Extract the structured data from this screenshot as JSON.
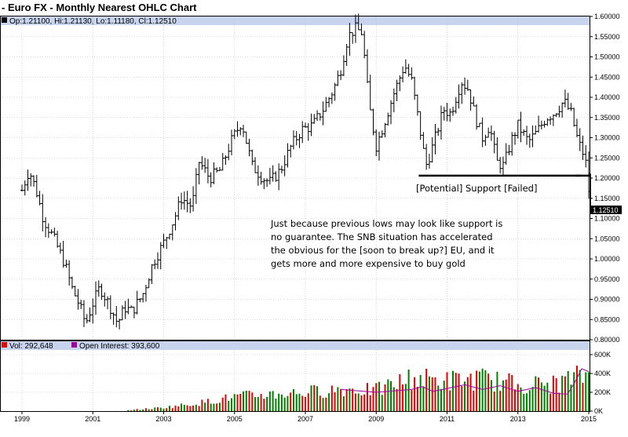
{
  "chart_data": {
    "type": "ohlc",
    "title": "- Euro FX - Monthly Nearest OHLC Chart",
    "ohlc_readout": {
      "label": "Op:1.21100, Hi:1.21130, Lo:1.11180, Cl:1.12510"
    },
    "last_price_badge": "1.12510",
    "price_axis": {
      "ylim": [
        0.8,
        1.6
      ],
      "ticks": [
        "1.60000",
        "1.55000",
        "1.50000",
        "1.45000",
        "1.40000",
        "1.35000",
        "1.30000",
        "1.25000",
        "1.20000",
        "1.15000",
        "1.10000",
        "1.05000",
        "1.00000",
        "0.95000",
        "0.90000",
        "0.85000",
        "0.80000"
      ]
    },
    "x_axis": {
      "range": [
        1998.7,
        2015.2
      ],
      "ticks": [
        "1999",
        "2001",
        "2003",
        "2005",
        "2007",
        "2009",
        "2011",
        "2013",
        "2015"
      ]
    },
    "price_path": [
      [
        1999.0,
        1.17
      ],
      [
        1999.2,
        1.22
      ],
      [
        1999.4,
        1.17
      ],
      [
        1999.6,
        1.1
      ],
      [
        1999.9,
        1.05
      ],
      [
        2000.2,
        0.99
      ],
      [
        2000.4,
        0.93
      ],
      [
        2000.6,
        0.89
      ],
      [
        2000.8,
        0.84
      ],
      [
        2001.0,
        0.89
      ],
      [
        2001.2,
        0.93
      ],
      [
        2001.5,
        0.88
      ],
      [
        2001.7,
        0.84
      ],
      [
        2001.9,
        0.88
      ],
      [
        2002.1,
        0.87
      ],
      [
        2002.4,
        0.91
      ],
      [
        2002.7,
        0.99
      ],
      [
        2003.0,
        1.04
      ],
      [
        2003.3,
        1.1
      ],
      [
        2003.5,
        1.15
      ],
      [
        2003.8,
        1.13
      ],
      [
        2004.0,
        1.24
      ],
      [
        2004.3,
        1.2
      ],
      [
        2004.6,
        1.22
      ],
      [
        2004.9,
        1.29
      ],
      [
        2005.2,
        1.34
      ],
      [
        2005.5,
        1.23
      ],
      [
        2005.8,
        1.2
      ],
      [
        2006.0,
        1.19
      ],
      [
        2006.3,
        1.22
      ],
      [
        2006.6,
        1.28
      ],
      [
        2006.9,
        1.32
      ],
      [
        2007.2,
        1.33
      ],
      [
        2007.5,
        1.37
      ],
      [
        2007.8,
        1.42
      ],
      [
        2008.0,
        1.47
      ],
      [
        2008.2,
        1.55
      ],
      [
        2008.4,
        1.57
      ],
      [
        2008.6,
        1.56
      ],
      [
        2008.8,
        1.38
      ],
      [
        2009.0,
        1.28
      ],
      [
        2009.2,
        1.33
      ],
      [
        2009.5,
        1.41
      ],
      [
        2009.8,
        1.48
      ],
      [
        2010.0,
        1.44
      ],
      [
        2010.2,
        1.34
      ],
      [
        2010.4,
        1.23
      ],
      [
        2010.6,
        1.28
      ],
      [
        2010.9,
        1.37
      ],
      [
        2011.1,
        1.36
      ],
      [
        2011.4,
        1.44
      ],
      [
        2011.6,
        1.42
      ],
      [
        2011.8,
        1.35
      ],
      [
        2012.0,
        1.3
      ],
      [
        2012.2,
        1.33
      ],
      [
        2012.4,
        1.24
      ],
      [
        2012.6,
        1.23
      ],
      [
        2012.8,
        1.29
      ],
      [
        2013.0,
        1.33
      ],
      [
        2013.3,
        1.29
      ],
      [
        2013.5,
        1.31
      ],
      [
        2013.8,
        1.35
      ],
      [
        2014.0,
        1.36
      ],
      [
        2014.3,
        1.39
      ],
      [
        2014.5,
        1.36
      ],
      [
        2014.7,
        1.29
      ],
      [
        2014.9,
        1.25
      ],
      [
        2015.0,
        1.17
      ]
    ],
    "support_line": {
      "y": 1.206,
      "x_start": 2010.2,
      "x_end": 2014.8
    },
    "price_marker": {
      "y": 1.206,
      "x_start": 2015.1,
      "x_end": 2015.5
    },
    "annotations": {
      "support_label": "[Potential] Support [Failed]",
      "note_lines": [
        "Just because previous lows may look like support is",
        "no guarantee.  The SNB situation has accelerated",
        "the obvious for the [soon to break up?] EU, and it",
        "gets more and more expensive to buy gold"
      ]
    },
    "volume_panel": {
      "legend": {
        "volume": "Vol: 292,648",
        "open_interest": "Open Interest: 393,600"
      },
      "ylim": [
        0,
        600000
      ],
      "ticks": [
        "600K",
        "400K",
        "200K",
        "0K"
      ],
      "volume_by_year": [
        [
          2002.0,
          10000
        ],
        [
          2003.0,
          40000
        ],
        [
          2004.0,
          90000
        ],
        [
          2005.0,
          160000
        ],
        [
          2006.0,
          190000
        ],
        [
          2007.0,
          210000
        ],
        [
          2008.0,
          250000
        ],
        [
          2009.0,
          230000
        ],
        [
          2010.0,
          370000
        ],
        [
          2011.0,
          340000
        ],
        [
          2012.0,
          360000
        ],
        [
          2013.0,
          300000
        ],
        [
          2014.0,
          300000
        ],
        [
          2015.0,
          420000
        ]
      ],
      "open_interest_path": [
        [
          2008.0,
          230000
        ],
        [
          2009.0,
          200000
        ],
        [
          2010.0,
          230000
        ],
        [
          2010.3,
          260000
        ],
        [
          2010.6,
          210000
        ],
        [
          2011.0,
          240000
        ],
        [
          2011.5,
          280000
        ],
        [
          2012.0,
          230000
        ],
        [
          2012.5,
          270000
        ],
        [
          2013.0,
          210000
        ],
        [
          2013.5,
          250000
        ],
        [
          2014.0,
          190000
        ],
        [
          2014.4,
          180000
        ],
        [
          2014.6,
          300000
        ],
        [
          2014.8,
          450000
        ],
        [
          2015.0,
          420000
        ]
      ]
    },
    "colors": {
      "up": "#008000",
      "down": "#e00000",
      "oi": "#a000a0",
      "header_band": "#c8d4ee",
      "grid": "#bbbbbb"
    }
  }
}
